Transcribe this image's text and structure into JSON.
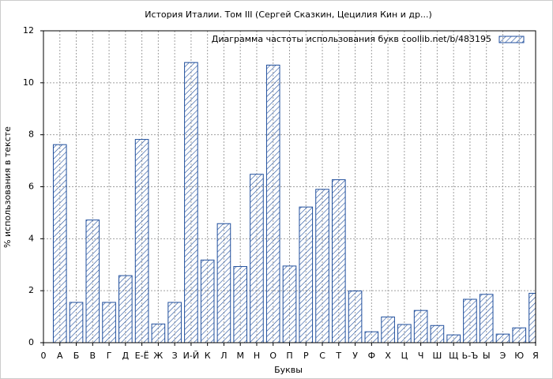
{
  "chart_data": {
    "type": "bar",
    "title": "История Италии. Том III (Сергей Сказкин, Цецилия Кин и др...)",
    "x_label": "Буквы",
    "y_label": "% использования в тексте",
    "x": [
      1,
      2,
      3,
      4,
      5,
      6,
      7,
      8,
      9,
      10,
      11,
      12,
      13,
      14,
      15,
      16,
      17,
      18,
      19,
      20,
      21,
      22,
      23,
      24,
      25,
      26,
      27,
      28,
      29,
      30
    ],
    "series": [
      {
        "name": "Диаграмма частоты использования букв  coollib.net/b/483195",
        "color": "#1f4e9c",
        "values": [
          7.62,
          1.55,
          4.72,
          1.55,
          2.58,
          7.82,
          0.72,
          1.55,
          10.78,
          3.18,
          4.58,
          2.93,
          6.48,
          10.68,
          2.95,
          5.22,
          5.9,
          6.27,
          1.99,
          0.42,
          0.99,
          0.7,
          1.24,
          0.66,
          0.3,
          1.67,
          1.86,
          0.33,
          0.57,
          1.9
        ]
      }
    ],
    "xlim": [
      0,
      30
    ],
    "xticks": [
      0,
      {
        "value": 1,
        "label": "А"
      },
      {
        "value": 2,
        "label": "Б"
      },
      {
        "value": 3,
        "label": "В"
      },
      {
        "value": 4,
        "label": "Г"
      },
      {
        "value": 5,
        "label": "Д"
      },
      {
        "value": 6,
        "label": "Е-Ё"
      },
      {
        "value": 7,
        "label": "Ж"
      },
      {
        "value": 8,
        "label": "З"
      },
      {
        "value": 9,
        "label": "И-Й"
      },
      {
        "value": 10,
        "label": "К"
      },
      {
        "value": 11,
        "label": "Л"
      },
      {
        "value": 12,
        "label": "М"
      },
      {
        "value": 13,
        "label": "Н"
      },
      {
        "value": 14,
        "label": "О"
      },
      {
        "value": 15,
        "label": "П"
      },
      {
        "value": 16,
        "label": "Р"
      },
      {
        "value": 17,
        "label": "С"
      },
      {
        "value": 18,
        "label": "Т"
      },
      {
        "value": 19,
        "label": "У"
      },
      {
        "value": 20,
        "label": "Ф"
      },
      {
        "value": 21,
        "label": "Х"
      },
      {
        "value": 22,
        "label": "Ц"
      },
      {
        "value": 23,
        "label": "Ч"
      },
      {
        "value": 24,
        "label": "Ш"
      },
      {
        "value": 25,
        "label": "Щ"
      },
      {
        "value": 26,
        "label": "Ь-Ъ"
      },
      {
        "value": 27,
        "label": "Ы"
      },
      {
        "value": 28,
        "label": "Э"
      },
      {
        "value": 29,
        "label": "Ю"
      },
      {
        "value": 30,
        "label": "Я"
      }
    ],
    "ylim": [
      0,
      12
    ],
    "yticks": [
      0,
      2,
      4,
      6,
      8,
      10,
      12
    ],
    "grid": true,
    "legend": "top-right"
  }
}
